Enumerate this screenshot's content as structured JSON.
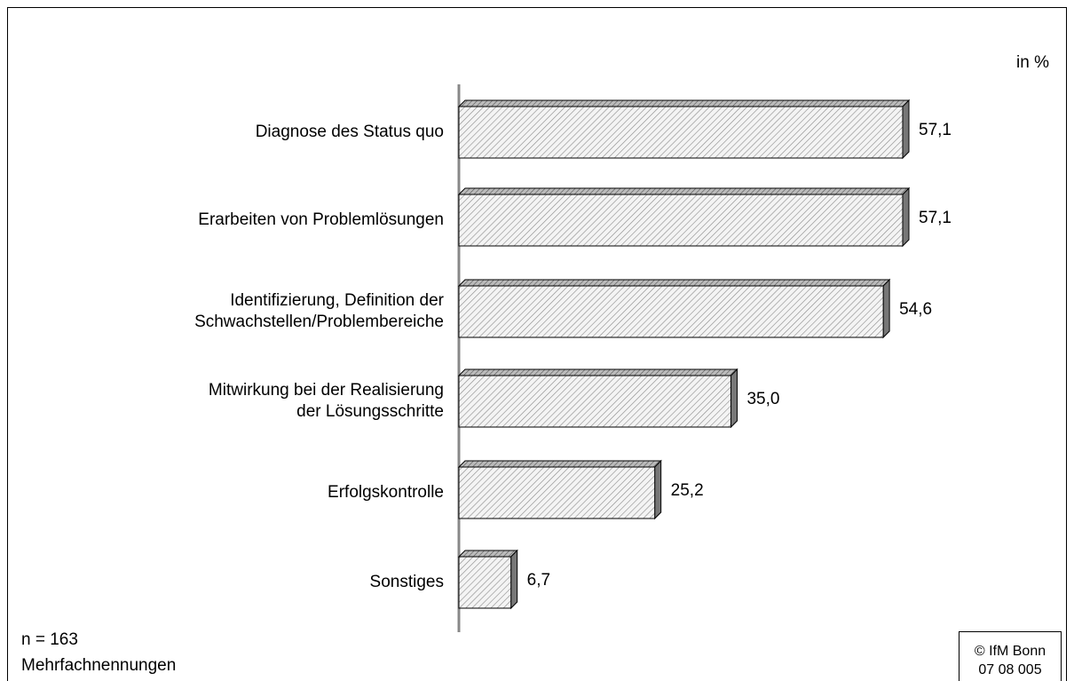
{
  "chart_data": {
    "type": "bar",
    "unit_label": "in %",
    "categories": [
      "Diagnose des Status quo",
      "Erarbeiten von Problemlösungen",
      "Identifizierung, Definition der\nSchwachstellen/Problembereiche",
      "Mitwirkung bei der Realisierung\nder Lösungsschritte",
      "Erfolgskontrolle",
      "Sonstiges"
    ],
    "values": [
      57.1,
      57.1,
      54.6,
      35.0,
      25.2,
      6.7
    ],
    "value_labels": [
      "57,1",
      "57,1",
      "54,6",
      "35,0",
      "25,2",
      "6,7"
    ],
    "color": "#e8e8e8",
    "notes": [
      "n = 163",
      "Mehrfachnennungen"
    ],
    "source": [
      "© IfM Bonn",
      "07 08 005"
    ]
  }
}
